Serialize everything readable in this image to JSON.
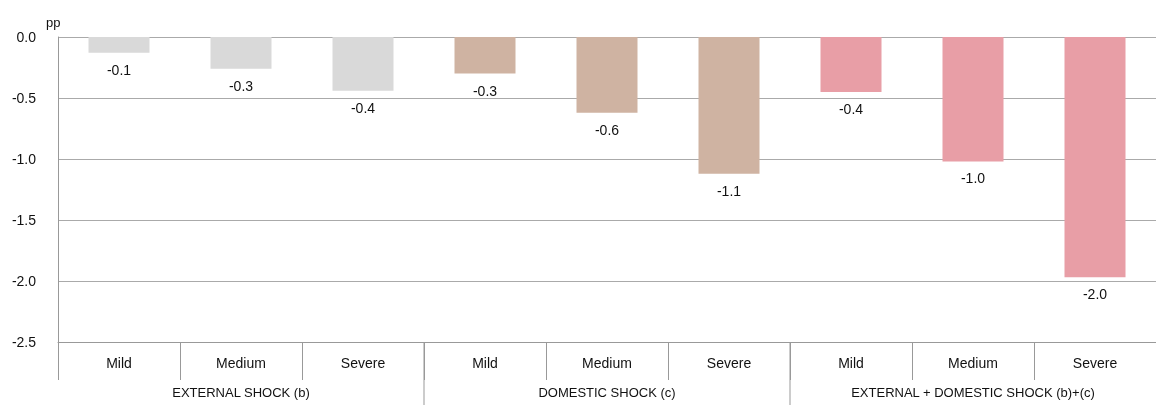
{
  "chart_data": {
    "type": "bar",
    "ylabel": "pp",
    "categories": [
      "Mild",
      "Medium",
      "Severe",
      "Mild",
      "Medium",
      "Severe",
      "Mild",
      "Medium",
      "Severe"
    ],
    "values": [
      -0.13,
      -0.26,
      -0.44,
      -0.3,
      -0.62,
      -1.12,
      -0.45,
      -1.02,
      -1.97
    ],
    "value_labels": [
      "-0.1",
      "-0.3",
      "-0.4",
      "-0.3",
      "-0.6",
      "-1.1",
      "-0.4",
      "-1.0",
      "-2.0"
    ],
    "colors": [
      "#d9d9d9",
      "#d9d9d9",
      "#d9d9d9",
      "#cfb3a2",
      "#cfb3a2",
      "#cfb3a2",
      "#e89ea6",
      "#e89ea6",
      "#e89ea6"
    ],
    "ylim": [
      -2.5,
      0
    ],
    "yticks": [
      -2.5,
      {
        "value": -2,
        "label": "-2.0"
      },
      -1.5,
      {
        "value": -1,
        "label": "-1.0"
      },
      -0.5,
      {
        "value": 0,
        "label": "0.0"
      }
    ],
    "grid": "y",
    "annotations": [
      "EXTERNAL SHOCK (b)",
      "DOMESTIC SHOCK (c)",
      "EXTERNAL + DOMESTIC SHOCK (b)+(c)"
    ]
  }
}
